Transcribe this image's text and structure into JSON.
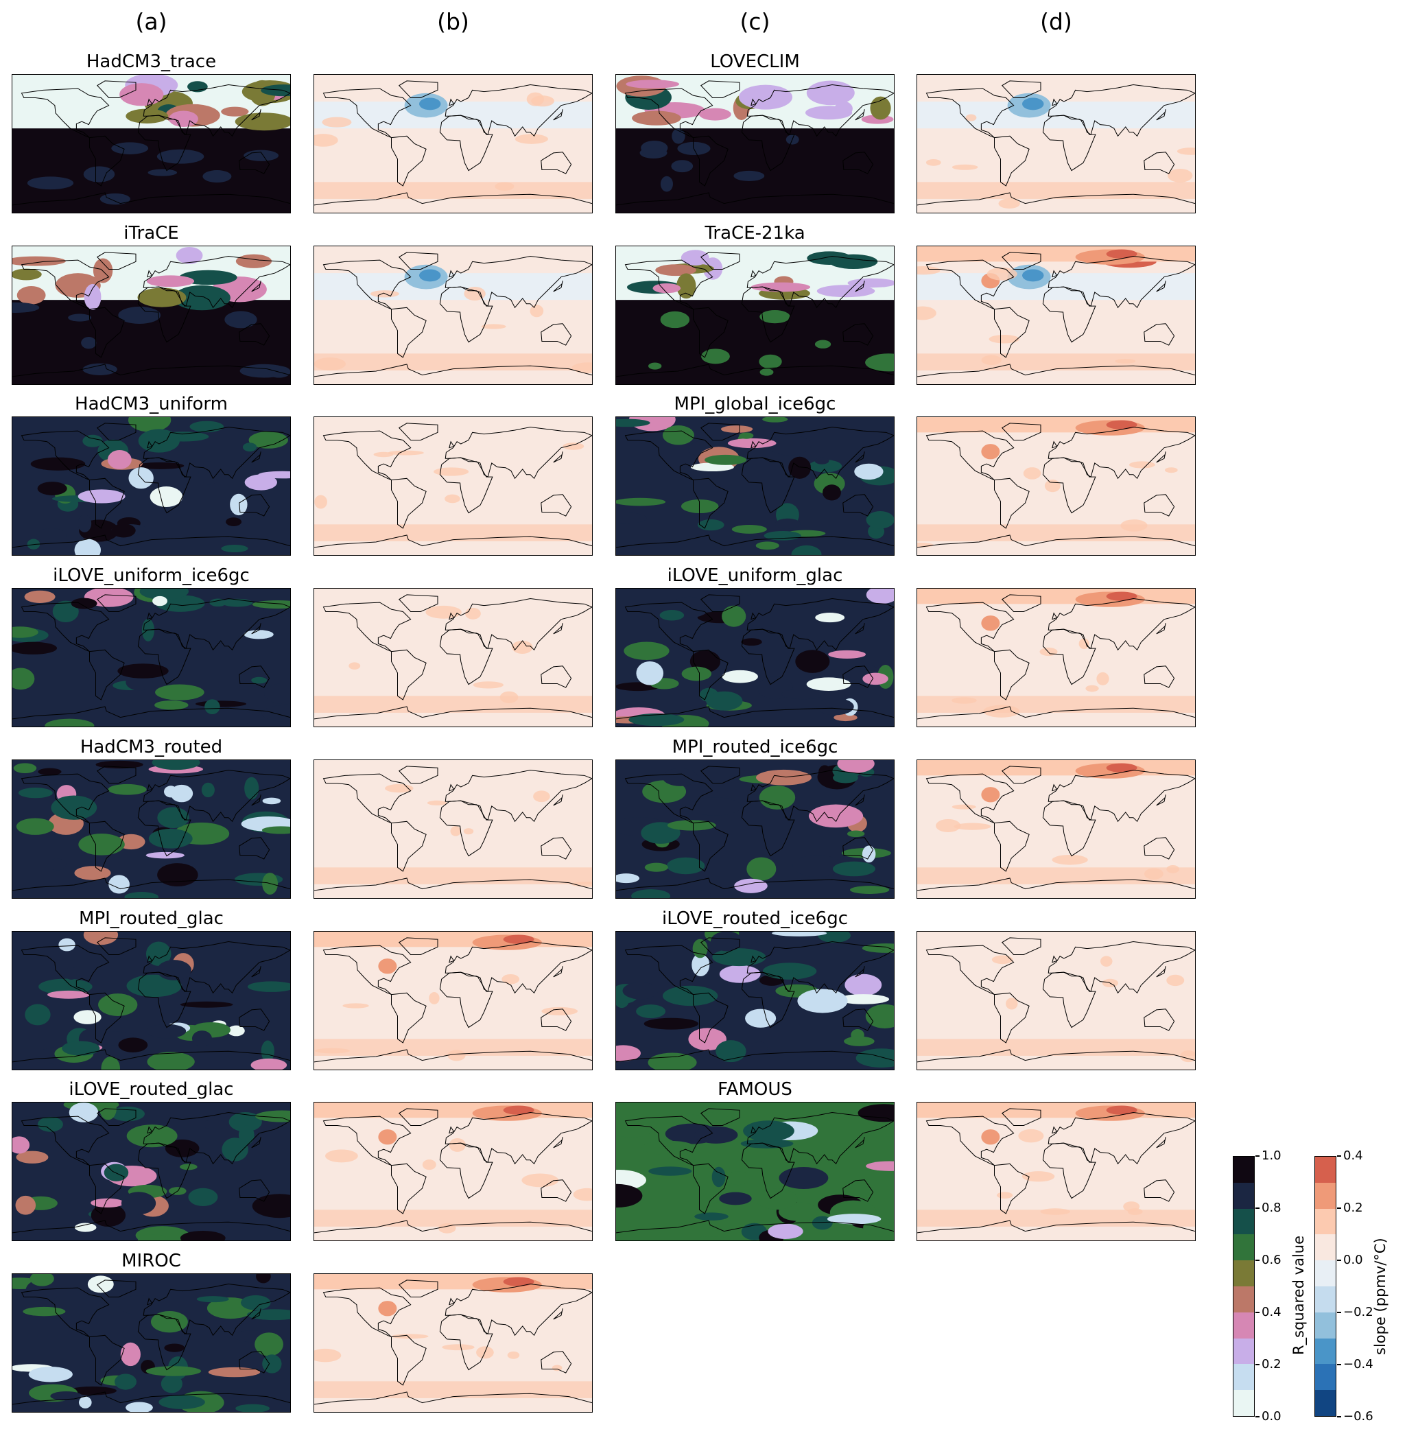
{
  "column_labels": [
    "(a)",
    "(b)",
    "(c)",
    "(d)"
  ],
  "columns": [
    {
      "kind": "r_squared",
      "panels": [
        "HadCM3_trace",
        "iTraCE",
        "HadCM3_uniform",
        "iLOVE_uniform_ice6gc",
        "HadCM3_routed",
        "MPI_routed_glac",
        "iLOVE_routed_glac",
        "MIROC"
      ]
    },
    {
      "kind": "slope",
      "panels": [
        "HadCM3_trace",
        "iTraCE",
        "HadCM3_uniform",
        "iLOVE_uniform_ice6gc",
        "HadCM3_routed",
        "MPI_routed_glac",
        "iLOVE_routed_glac",
        "MIROC"
      ]
    },
    {
      "kind": "r_squared",
      "panels": [
        "LOVECLIM",
        "TraCE-21ka",
        "MPI_global_ice6gc",
        "iLOVE_uniform_glac",
        "MPI_routed_ice6gc",
        "iLOVE_routed_ice6gc",
        "FAMOUS"
      ]
    },
    {
      "kind": "slope",
      "panels": [
        "LOVECLIM",
        "TraCE-21ka",
        "MPI_global_ice6gc",
        "iLOVE_uniform_glac",
        "MPI_routed_ice6gc",
        "iLOVE_routed_ice6gc",
        "FAMOUS"
      ]
    }
  ],
  "titled_columns": [
    0,
    2
  ],
  "colorbars": {
    "r_squared": {
      "label": "R_squared value",
      "range": [
        0.0,
        1.0
      ],
      "ticks": [
        "1.0",
        "0.8",
        "0.6",
        "0.4",
        "0.2",
        "0.0"
      ],
      "colors_top_to_bottom": [
        "#100812",
        "#1b2642",
        "#15504a",
        "#31743a",
        "#7a7a36",
        "#bc7868",
        "#d687b4",
        "#c8aee8",
        "#c6ddf0",
        "#eaf6f3"
      ]
    },
    "slope": {
      "label": "slope (ppmv/°C)",
      "range": [
        -0.6,
        0.4
      ],
      "ticks": [
        "0.4",
        "0.2",
        "0.0",
        "−0.2",
        "−0.4",
        "−0.6"
      ],
      "colors_top_to_bottom": [
        "#d6604d",
        "#ef9a78",
        "#fccab0",
        "#f9e8e0",
        "#e8eff5",
        "#c5dcee",
        "#92c0dc",
        "#4a95c8",
        "#2b72b6",
        "#114582"
      ]
    }
  }
}
